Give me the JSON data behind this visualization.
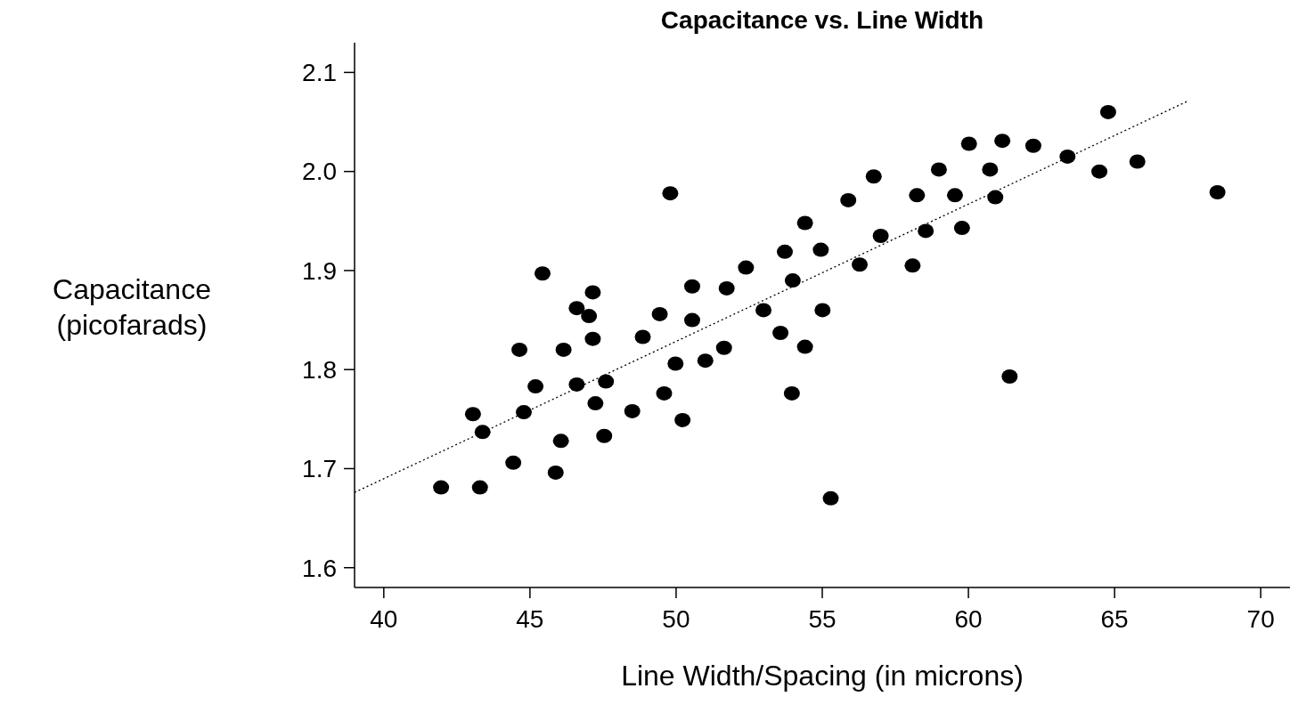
{
  "chart_data": {
    "type": "scatter",
    "title": "Capacitance vs. Line Width",
    "xlabel": "Line Width/Spacing (in microns)",
    "ylabel": "Capacitance\n(picofarads)",
    "xlim": [
      39,
      71
    ],
    "xticks": [
      40,
      45,
      50,
      55,
      60,
      65,
      70
    ],
    "ylim": [
      1.58,
      2.13
    ],
    "yticks": [
      1.6,
      1.7,
      1.8,
      1.9,
      {
        "value": 2,
        "label": "2.0"
      },
      2.1
    ],
    "grid": false,
    "series": [
      {
        "color": "#000000",
        "marker": "circle",
        "x": [
          41.96,
          43.29,
          43.38,
          43.05,
          44.64,
          44.79,
          44.43,
          45.19,
          45.43,
          45.88,
          46.06,
          46.15,
          46.6,
          46.6,
          47.15,
          47.24,
          47.6,
          47.54,
          47.02,
          47.15,
          48.5,
          48.86,
          49.44,
          49.59,
          49.8,
          49.98,
          50.22,
          50.55,
          50.55,
          51.0,
          51.64,
          51.73,
          52.39,
          52.99,
          53.57,
          53.72,
          53.96,
          53.99,
          54.41,
          54.41,
          54.95,
          55.01,
          55.29,
          55.89,
          56.28,
          56.76,
          57.0,
          58.24,
          58.09,
          58.54,
          58.99,
          59.54,
          59.78,
          60.02,
          60.74,
          60.92,
          61.16,
          61.41,
          62.22,
          63.39,
          64.48,
          64.78,
          65.78,
          68.52
        ],
        "values": [
          1.681,
          1.681,
          1.737,
          1.755,
          1.82,
          1.757,
          1.706,
          1.783,
          1.897,
          1.696,
          1.728,
          1.82,
          1.862,
          1.785,
          1.831,
          1.766,
          1.788,
          1.733,
          1.854,
          1.878,
          1.758,
          1.833,
          1.856,
          1.776,
          1.978,
          1.806,
          1.749,
          1.884,
          1.85,
          1.809,
          1.822,
          1.882,
          1.903,
          1.86,
          1.837,
          1.919,
          1.776,
          1.89,
          1.948,
          1.823,
          1.921,
          1.86,
          1.67,
          1.971,
          1.906,
          1.995,
          1.935,
          1.976,
          1.905,
          1.94,
          2.002,
          1.976,
          1.943,
          2.028,
          2.002,
          1.974,
          2.031,
          1.793,
          2.026,
          2.015,
          2.0,
          2.06,
          2.01,
          1.979
        ]
      },
      {
        "type": "line",
        "color": "#000000",
        "line_style": "dotted",
        "x": [
          39,
          67.5
        ],
        "values": [
          1.676,
          2.071
        ]
      }
    ]
  }
}
